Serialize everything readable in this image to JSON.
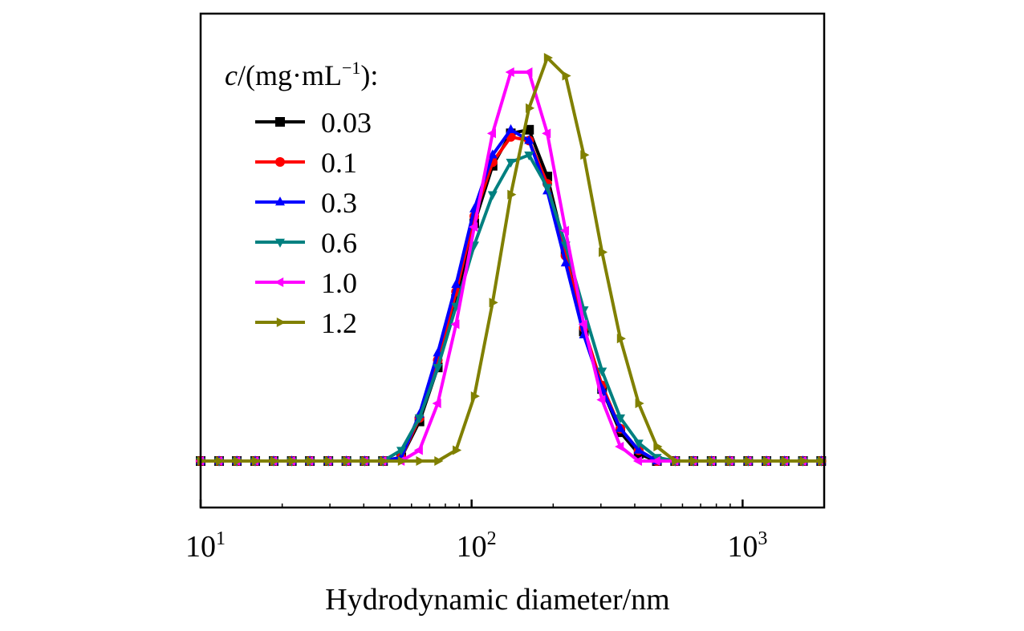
{
  "chart_data": {
    "type": "line",
    "x_scale": "log",
    "xlim": [
      10,
      2000
    ],
    "ylim": [
      0,
      1.12
    ],
    "xlabel": "Hydrodynamic diameter/nm",
    "ylabel": "",
    "y_ticks_shown": false,
    "x_ticks": [
      {
        "base": "10",
        "exp": "1",
        "value": 10
      },
      {
        "base": "10",
        "exp": "2",
        "value": 100
      },
      {
        "base": "10",
        "exp": "3",
        "value": 1000
      }
    ],
    "legend": {
      "position": "top-left",
      "title_var": "c",
      "title_rest": "/(mg·mL",
      "title_exp": "−1",
      "title_end": "):"
    },
    "x": [
      10.0,
      11.7,
      13.6,
      15.9,
      18.6,
      21.7,
      25.3,
      29.6,
      34.5,
      40.3,
      47.1,
      55.0,
      64.2,
      75.0,
      87.6,
      102.3,
      119.5,
      139.5,
      162.9,
      190.3,
      222.2,
      259.5,
      303.0,
      353.9,
      413.3,
      482.7,
      563.7,
      658.3,
      768.8,
      897.8,
      1048.5,
      1224.4,
      1429.9,
      1669.9,
      1950.0
    ],
    "series": [
      {
        "name": "0.03",
        "color": "#000000",
        "marker": "square",
        "values": [
          0,
          0,
          0,
          0,
          0,
          0,
          0,
          0,
          0,
          0,
          0,
          0.01,
          0.11,
          0.26,
          0.45,
          0.66,
          0.82,
          0.91,
          0.92,
          0.79,
          0.58,
          0.36,
          0.2,
          0.08,
          0.02,
          0.0,
          0,
          0,
          0,
          0,
          0,
          0,
          0,
          0,
          0
        ]
      },
      {
        "name": "0.1",
        "color": "#ff0000",
        "marker": "circle",
        "values": [
          0,
          0,
          0,
          0,
          0,
          0,
          0,
          0,
          0,
          0,
          0,
          0.01,
          0.12,
          0.28,
          0.47,
          0.68,
          0.83,
          0.9,
          0.89,
          0.77,
          0.57,
          0.37,
          0.21,
          0.09,
          0.03,
          0.0,
          0,
          0,
          0,
          0,
          0,
          0,
          0,
          0,
          0
        ]
      },
      {
        "name": "0.3",
        "color": "#0000ff",
        "marker": "triangle-up",
        "values": [
          0,
          0,
          0,
          0,
          0,
          0,
          0,
          0,
          0,
          0,
          0,
          0.01,
          0.13,
          0.3,
          0.49,
          0.7,
          0.85,
          0.92,
          0.89,
          0.75,
          0.55,
          0.35,
          0.2,
          0.09,
          0.03,
          0.0,
          0,
          0,
          0,
          0,
          0,
          0,
          0,
          0,
          0
        ]
      },
      {
        "name": "0.6",
        "color": "#008080",
        "marker": "triangle-down",
        "values": [
          0,
          0,
          0,
          0,
          0,
          0,
          0,
          0,
          0,
          0,
          0,
          0.03,
          0.12,
          0.26,
          0.43,
          0.6,
          0.74,
          0.83,
          0.85,
          0.76,
          0.6,
          0.42,
          0.25,
          0.12,
          0.05,
          0.01,
          0,
          0,
          0,
          0,
          0,
          0,
          0,
          0,
          0
        ]
      },
      {
        "name": "1.0",
        "color": "#ff00ff",
        "marker": "triangle-left",
        "values": [
          0,
          0,
          0,
          0,
          0,
          0,
          0,
          0,
          0,
          0,
          0,
          0,
          0.03,
          0.16,
          0.38,
          0.65,
          0.91,
          1.08,
          1.08,
          0.91,
          0.64,
          0.38,
          0.17,
          0.04,
          0,
          0,
          0,
          0,
          0,
          0,
          0,
          0,
          0,
          0,
          0
        ]
      },
      {
        "name": "1.2",
        "color": "#808000",
        "marker": "triangle-right",
        "values": [
          0,
          0,
          0,
          0,
          0,
          0,
          0,
          0,
          0,
          0,
          0,
          0,
          0,
          0,
          0.03,
          0.18,
          0.44,
          0.74,
          0.98,
          1.12,
          1.07,
          0.85,
          0.58,
          0.34,
          0.16,
          0.04,
          0,
          0,
          0,
          0,
          0,
          0,
          0,
          0,
          0
        ]
      }
    ]
  }
}
